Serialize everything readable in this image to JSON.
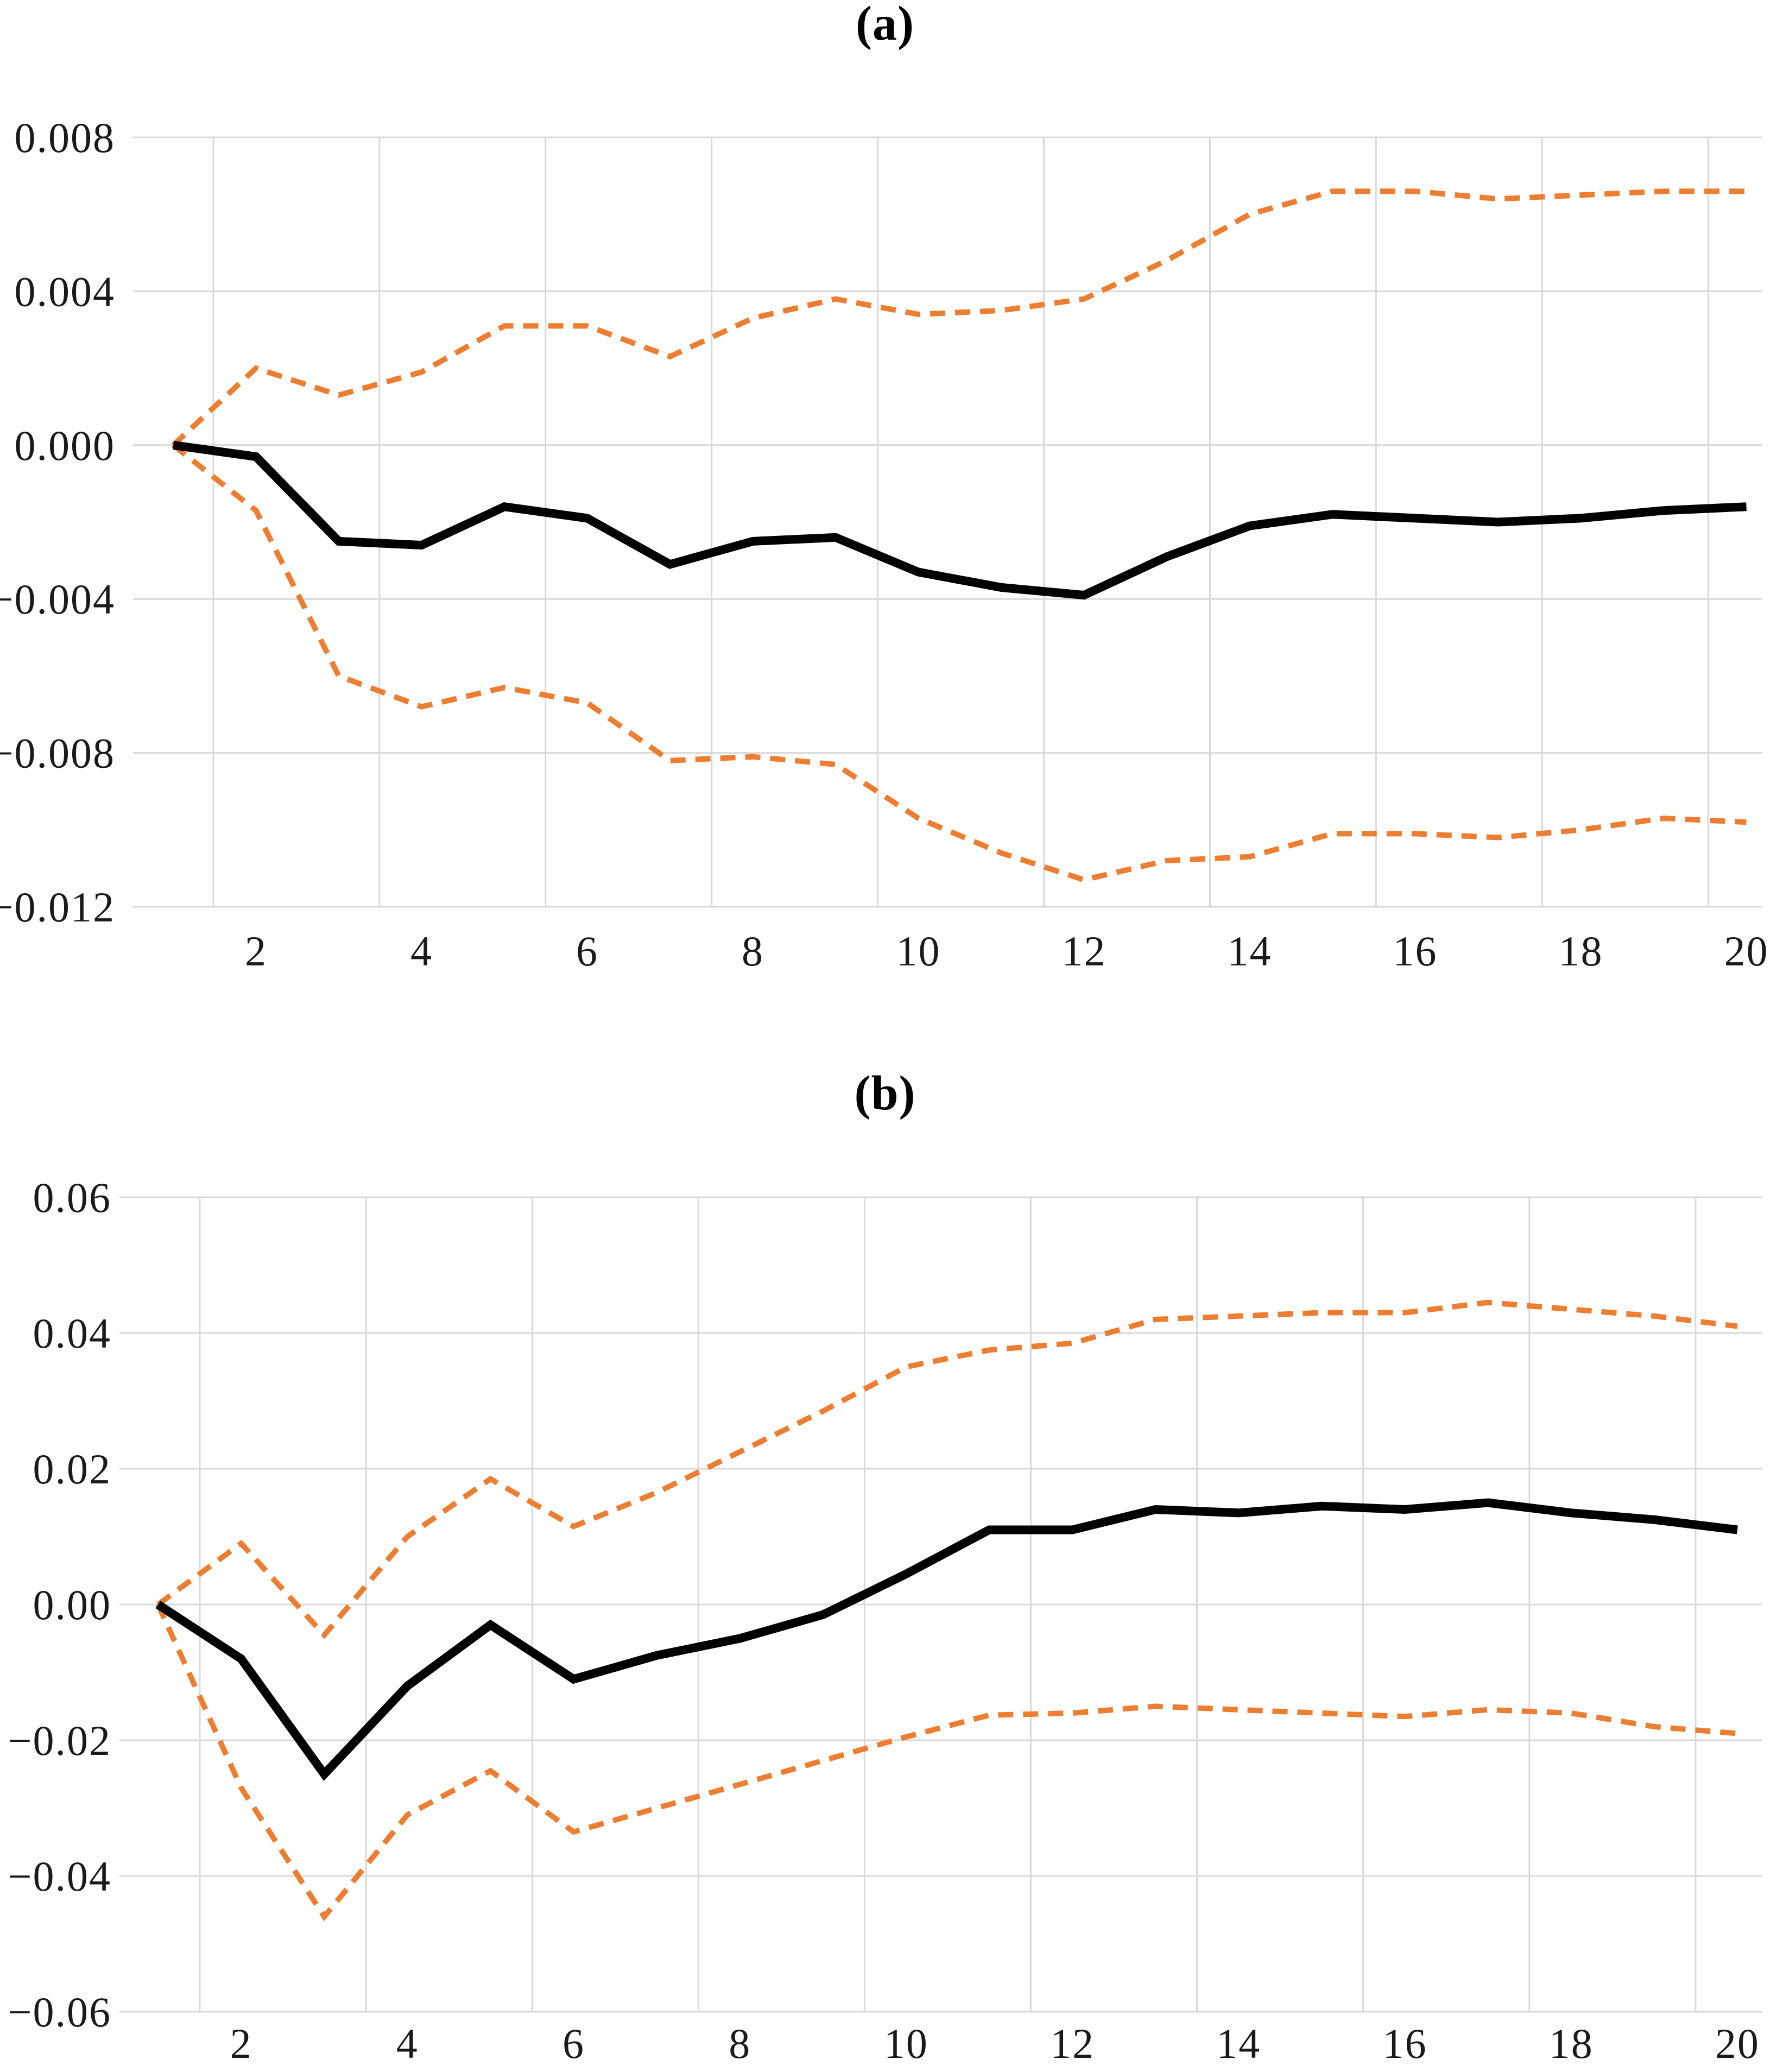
{
  "figure": {
    "background": "#ffffff",
    "gridline_color": "#d9d9d9",
    "mean_line_color": "#000000",
    "band_line_color": "#ED7D31"
  },
  "chart_data": [
    {
      "id": "a",
      "title": "(a)",
      "type": "line",
      "xlabel": "",
      "ylabel": "",
      "xlim": [
        1,
        20
      ],
      "ylim": [
        -0.012,
        0.008
      ],
      "grid": true,
      "legend_position": "none",
      "x": [
        1,
        2,
        3,
        4,
        5,
        6,
        7,
        8,
        9,
        10,
        11,
        12,
        13,
        14,
        15,
        16,
        17,
        18,
        19,
        20
      ],
      "x_ticks": [
        {
          "v": 2,
          "label": "2"
        },
        {
          "v": 4,
          "label": "4"
        },
        {
          "v": 6,
          "label": "6"
        },
        {
          "v": 8,
          "label": "8"
        },
        {
          "v": 10,
          "label": "10"
        },
        {
          "v": 12,
          "label": "12"
        },
        {
          "v": 14,
          "label": "14"
        },
        {
          "v": 16,
          "label": "16"
        },
        {
          "v": 18,
          "label": "18"
        },
        {
          "v": 20,
          "label": "20"
        }
      ],
      "y_ticks": [
        {
          "v": 0.008,
          "label": "0.008"
        },
        {
          "v": 0.004,
          "label": "0.004"
        },
        {
          "v": 0.0,
          "label": "0.000"
        },
        {
          "v": -0.004,
          "label": "−0.004"
        },
        {
          "v": -0.008,
          "label": "−0.008"
        },
        {
          "v": -0.012,
          "label": "−0.012"
        }
      ],
      "series": [
        {
          "name": "lower-confidence-band",
          "style": "dashed",
          "color": "#ED7D31",
          "values": [
            0.0,
            -0.0017,
            -0.006,
            -0.0068,
            -0.0063,
            -0.0067,
            -0.0082,
            -0.0081,
            -0.0083,
            -0.0097,
            -0.0106,
            -0.0113,
            -0.0108,
            -0.0107,
            -0.0101,
            -0.0101,
            -0.0102,
            -0.01,
            -0.0097,
            -0.0098
          ]
        },
        {
          "name": "upper-confidence-band",
          "style": "dashed",
          "color": "#ED7D31",
          "values": [
            0.0,
            0.002,
            0.0013,
            0.0019,
            0.0031,
            0.0031,
            0.0023,
            0.0033,
            0.0038,
            0.0034,
            0.0035,
            0.0038,
            0.0048,
            0.006,
            0.0066,
            0.0066,
            0.0064,
            0.0065,
            0.0066,
            0.0066
          ]
        },
        {
          "name": "impulse-response-mean",
          "style": "solid",
          "color": "#000000",
          "values": [
            0.0,
            -0.0003,
            -0.0025,
            -0.0026,
            -0.0016,
            -0.0019,
            -0.0031,
            -0.0025,
            -0.0024,
            -0.0033,
            -0.0037,
            -0.0039,
            -0.0029,
            -0.0021,
            -0.0018,
            -0.0019,
            -0.002,
            -0.0019,
            -0.0017,
            -0.0016
          ]
        }
      ]
    },
    {
      "id": "b",
      "title": "(b)",
      "type": "line",
      "xlabel": "",
      "ylabel": "",
      "xlim": [
        1,
        20
      ],
      "ylim": [
        -0.06,
        0.06
      ],
      "grid": true,
      "legend_position": "none",
      "x": [
        1,
        2,
        3,
        4,
        5,
        6,
        7,
        8,
        9,
        10,
        11,
        12,
        13,
        14,
        15,
        16,
        17,
        18,
        19,
        20
      ],
      "x_ticks": [
        {
          "v": 2,
          "label": "2"
        },
        {
          "v": 4,
          "label": "4"
        },
        {
          "v": 6,
          "label": "6"
        },
        {
          "v": 8,
          "label": "8"
        },
        {
          "v": 10,
          "label": "10"
        },
        {
          "v": 12,
          "label": "12"
        },
        {
          "v": 14,
          "label": "14"
        },
        {
          "v": 16,
          "label": "16"
        },
        {
          "v": 18,
          "label": "18"
        },
        {
          "v": 20,
          "label": "20"
        }
      ],
      "y_ticks": [
        {
          "v": 0.06,
          "label": "0.06"
        },
        {
          "v": 0.04,
          "label": "0.04"
        },
        {
          "v": 0.02,
          "label": "0.02"
        },
        {
          "v": 0.0,
          "label": "0.00"
        },
        {
          "v": -0.02,
          "label": "−0.02"
        },
        {
          "v": -0.04,
          "label": "−0.04"
        },
        {
          "v": -0.06,
          "label": "−0.06"
        }
      ],
      "series": [
        {
          "name": "lower-confidence-band",
          "style": "dashed",
          "color": "#ED7D31",
          "values": [
            0.0,
            -0.027,
            -0.046,
            -0.031,
            -0.0245,
            -0.0335,
            -0.03,
            -0.0265,
            -0.023,
            -0.0195,
            -0.0163,
            -0.016,
            -0.015,
            -0.0155,
            -0.016,
            -0.0165,
            -0.0155,
            -0.016,
            -0.018,
            -0.019
          ]
        },
        {
          "name": "upper-confidence-band",
          "style": "dashed",
          "color": "#ED7D31",
          "values": [
            0.0,
            0.009,
            -0.0045,
            0.01,
            0.0185,
            0.0115,
            0.0165,
            0.0225,
            0.0285,
            0.035,
            0.0375,
            0.0385,
            0.042,
            0.0425,
            0.043,
            0.043,
            0.0445,
            0.0435,
            0.0425,
            0.041
          ]
        },
        {
          "name": "impulse-response-mean",
          "style": "solid",
          "color": "#000000",
          "values": [
            0.0,
            -0.008,
            -0.025,
            -0.012,
            -0.003,
            -0.011,
            -0.0075,
            -0.005,
            -0.0015,
            0.0045,
            0.011,
            0.011,
            0.014,
            0.0135,
            0.0145,
            0.014,
            0.015,
            0.0135,
            0.0125,
            0.011
          ]
        }
      ]
    }
  ]
}
